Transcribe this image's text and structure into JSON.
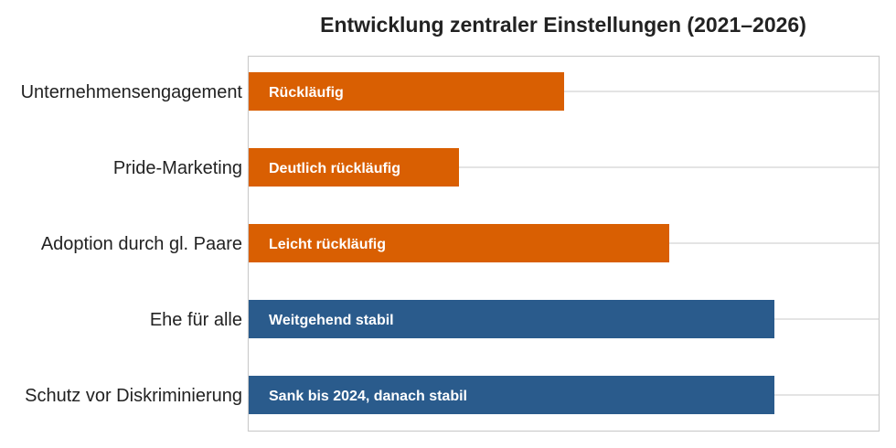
{
  "chart_data": {
    "type": "bar",
    "orientation": "horizontal",
    "title": "Entwicklung zentraler Einstellungen (2021–2026)",
    "xlabel": "",
    "ylabel": "",
    "grid": true,
    "xlim": [
      0,
      6
    ],
    "categories": [
      "Unternehmensengagement",
      "Pride-Marketing",
      "Adoption durch gl. Paare",
      "Ehe für alle",
      "Schutz vor Diskriminierung"
    ],
    "values": [
      3,
      2,
      4,
      5,
      5
    ],
    "bar_labels": [
      "Rückläufig",
      "Deutlich rückläufig",
      "Leicht rückläufig",
      "Weitgehend stabil",
      "Sank bis 2024, danach stabil"
    ],
    "bar_colors": [
      "#d95f02",
      "#d95f02",
      "#d95f02",
      "#2a5b8c",
      "#2a5b8c"
    ]
  }
}
